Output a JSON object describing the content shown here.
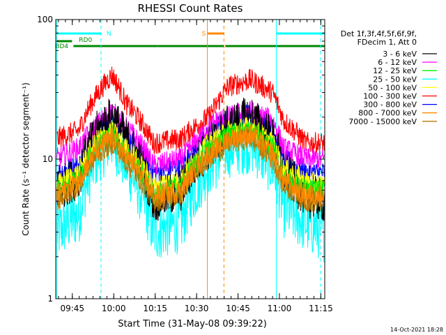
{
  "chart_data": {
    "type": "line",
    "title": "RHESSI Count Rates",
    "xlabel": "Start Time (31-May-08 09:39:22)",
    "ylabel": "Count Rate (s⁻¹ detector segment⁻¹)",
    "y_scale": "log",
    "ylim": [
      1,
      100
    ],
    "xlim_minutes": [
      -0.4,
      97.0
    ],
    "x_ticks": [
      {
        "label": "09:45",
        "minutes": 5.6
      },
      {
        "label": "10:00",
        "minutes": 20.6
      },
      {
        "label": "10:15",
        "minutes": 35.6
      },
      {
        "label": "10:30",
        "minutes": 50.6
      },
      {
        "label": "10:45",
        "minutes": 65.6
      },
      {
        "label": "11:00",
        "minutes": 80.6
      },
      {
        "label": "11:15",
        "minutes": 95.6
      }
    ],
    "y_ticks": [
      {
        "label": "1",
        "value": 1
      },
      {
        "label": "10",
        "value": 10
      },
      {
        "label": "100",
        "value": 100
      }
    ],
    "legend_title": [
      "Det 1f,3f,4f,5f,6f,9f,",
      "FDecim 1, Att 0"
    ],
    "legend_position": "right",
    "series": [
      {
        "name": "3 - 6 keV",
        "color": "#000000",
        "x_minutes": [
          0,
          8,
          15,
          20,
          25,
          35,
          45,
          50,
          55,
          58,
          62,
          70,
          78,
          82,
          90,
          97
        ],
        "values": [
          6.0,
          7.5,
          16.0,
          20.0,
          14.0,
          5.0,
          6.0,
          9.0,
          12.0,
          14.0,
          17.0,
          20.0,
          14.0,
          8.0,
          5.5,
          5.0
        ]
      },
      {
        "name": "6 - 12 keV",
        "color": "#ff00ff",
        "x_minutes": [
          0,
          8,
          15,
          20,
          25,
          35,
          45,
          50,
          55,
          58,
          62,
          70,
          78,
          82,
          90,
          97
        ],
        "values": [
          10.0,
          12.0,
          18.0,
          22.0,
          17.0,
          9.0,
          10.0,
          13.0,
          17.0,
          19.0,
          20.0,
          22.0,
          19.0,
          12.0,
          10.0,
          10.0
        ]
      },
      {
        "name": "12 - 25 keV",
        "color": "#00ee00",
        "x_minutes": [
          0,
          8,
          15,
          20,
          25,
          35,
          45,
          50,
          55,
          58,
          62,
          70,
          78,
          82,
          90,
          97
        ],
        "values": [
          6.0,
          7.0,
          13.0,
          15.0,
          11.0,
          5.5,
          6.5,
          9.0,
          12.0,
          13.0,
          15.0,
          16.0,
          12.0,
          7.5,
          6.0,
          6.0
        ]
      },
      {
        "name": "25 - 50 keV",
        "color": "#00ffff",
        "x_minutes": [
          0,
          8,
          15,
          20,
          25,
          35,
          45,
          50,
          55,
          58,
          62,
          70,
          78,
          82,
          90,
          97
        ],
        "values": [
          3.0,
          4.0,
          11.0,
          14.0,
          9.0,
          3.0,
          3.5,
          6.0,
          9.0,
          10.0,
          12.0,
          13.0,
          9.0,
          4.5,
          3.5,
          3.0
        ]
      },
      {
        "name": "50 - 100 keV",
        "color": "#ffff00",
        "x_minutes": [
          0,
          8,
          15,
          20,
          25,
          35,
          45,
          50,
          55,
          58,
          62,
          70,
          78,
          82,
          90,
          97
        ],
        "values": [
          6.5,
          8.0,
          14.0,
          16.0,
          12.0,
          6.5,
          7.0,
          10.0,
          13.0,
          14.0,
          16.0,
          17.0,
          13.0,
          8.5,
          7.0,
          6.5
        ]
      },
      {
        "name": "100 - 300 keV",
        "color": "#ff0000",
        "x_minutes": [
          0,
          8,
          15,
          20,
          25,
          35,
          45,
          50,
          55,
          58,
          62,
          70,
          78,
          82,
          90,
          97
        ],
        "values": [
          14.0,
          16.0,
          30.0,
          40.0,
          25.0,
          13.0,
          14.0,
          17.0,
          20.0,
          25.0,
          33.0,
          37.0,
          30.0,
          19.0,
          13.0,
          13.0
        ]
      },
      {
        "name": "300 - 800 keV",
        "color": "#0000ff",
        "x_minutes": [
          0,
          8,
          15,
          20,
          25,
          35,
          45,
          50,
          55,
          58,
          62,
          70,
          78,
          82,
          90,
          97
        ],
        "values": [
          8.0,
          9.0,
          16.0,
          19.0,
          14.0,
          8.0,
          9.0,
          12.0,
          15.0,
          17.0,
          19.0,
          21.0,
          17.0,
          10.0,
          8.0,
          8.0
        ]
      },
      {
        "name": "800 - 7000 keV",
        "color": "#ff8800",
        "x_minutes": [
          0,
          8,
          15,
          20,
          25,
          35,
          45,
          50,
          55,
          58,
          62,
          70,
          78,
          82,
          90,
          97
        ],
        "values": [
          5.5,
          7.0,
          12.0,
          14.5,
          10.5,
          5.5,
          6.0,
          8.5,
          11.0,
          12.0,
          14.0,
          15.0,
          11.0,
          7.0,
          5.5,
          5.5
        ]
      },
      {
        "name": "7000 - 15000 keV",
        "color": "#bb7700",
        "x_minutes": [
          0,
          8,
          15,
          20,
          25,
          35,
          45,
          50,
          55,
          58,
          62,
          70,
          78,
          82,
          90,
          97
        ],
        "values": [
          5.0,
          6.5,
          11.0,
          13.0,
          9.5,
          5.0,
          5.5,
          8.0,
          10.0,
          11.0,
          13.0,
          14.0,
          10.0,
          6.5,
          5.0,
          5.0
        ]
      }
    ],
    "flag_bars": [
      {
        "label": "N",
        "color": "#00ffff",
        "segments_minutes": [
          [
            0,
            16
          ],
          [
            79.5,
            97
          ]
        ],
        "level": 0,
        "label_at": 18
      },
      {
        "label": "S",
        "color": "#ff8800",
        "segments_minutes": [
          [
            54.5,
            60.5
          ]
        ],
        "level": 0,
        "label_at": 52.5
      },
      {
        "label": "RD0",
        "color": "#008800",
        "segments_minutes": [
          [
            0,
            5.5
          ]
        ],
        "level": 1,
        "label_at": 8
      },
      {
        "label": "BD4",
        "color": "#008800",
        "segments_minutes": [
          [
            6,
            36.5
          ],
          [
            36.5,
            60.5
          ],
          [
            61,
            81.5
          ],
          [
            81.5,
            97
          ]
        ],
        "level": 2,
        "label_at": -0.6
      }
    ],
    "vertical_markers": [
      {
        "minutes": 0.0,
        "color": "#00ffff",
        "style": "solid"
      },
      {
        "minutes": 16.0,
        "color": "#00ffff",
        "style": "dashed"
      },
      {
        "minutes": 54.5,
        "color": "#ff8800",
        "style": "solid"
      },
      {
        "minutes": 60.5,
        "color": "#ff8800",
        "style": "dashed"
      },
      {
        "minutes": 79.5,
        "color": "#00ffff",
        "style": "solid"
      },
      {
        "minutes": 95.5,
        "color": "#00ffff",
        "style": "dashed"
      }
    ],
    "timestamp": "14-Oct-2021 18:28"
  }
}
